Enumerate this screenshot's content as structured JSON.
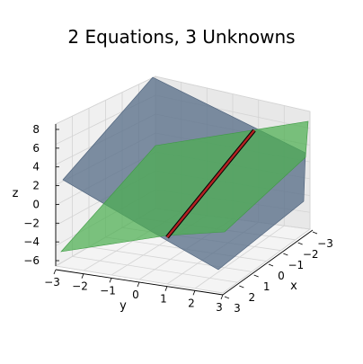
{
  "chart_data": {
    "type": "surface3d",
    "title": "2 Equations, 3 Unknowns",
    "xlabel": "x",
    "ylabel": "y",
    "zlabel": "z",
    "xlim": [
      -3,
      3
    ],
    "ylim": [
      -3,
      3
    ],
    "zlim": [
      -6,
      8
    ],
    "x_ticks": [
      "3",
      "2",
      "1",
      "0",
      "−1",
      "−2",
      "−3"
    ],
    "y_ticks": [
      "−3",
      "−2",
      "−1",
      "0",
      "1",
      "2",
      "3"
    ],
    "z_ticks": [
      "−6",
      "−4",
      "−2",
      "0",
      "2",
      "4",
      "6",
      "8"
    ],
    "series": [
      {
        "kind": "plane",
        "color": "#5a6f89",
        "opacity": 0.75
      },
      {
        "kind": "plane",
        "color": "#4caf50",
        "opacity": 0.7
      },
      {
        "kind": "intersection-line",
        "color": "#8b0000"
      }
    ],
    "grid": true
  }
}
